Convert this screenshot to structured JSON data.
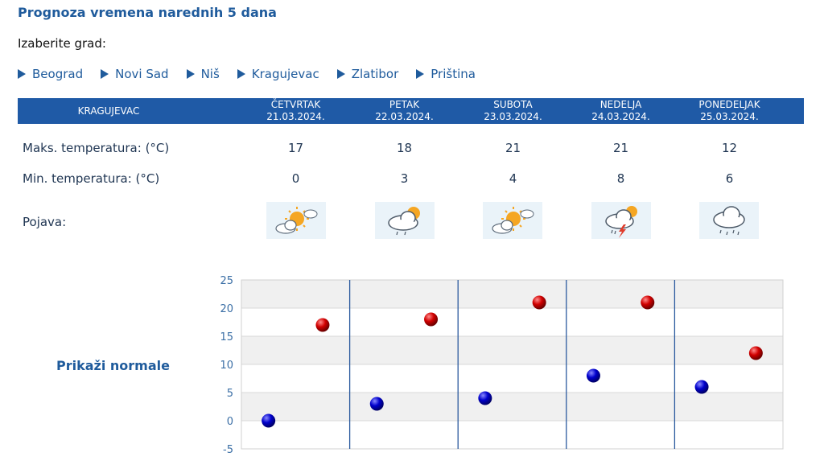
{
  "title": "Prognoza vremena narednih 5 dana",
  "choose_label": "Izaberite grad:",
  "cities": [
    "Beograd",
    "Novi Sad",
    "Niš",
    "Kragujevac",
    "Zlatibor",
    "Priština"
  ],
  "city_name": "KRAGUJEVAC",
  "days": [
    {
      "name": "ČETVRTAK",
      "date": "21.03.2024.",
      "max": "17",
      "min": "0",
      "icon": "sun-cloud-icon"
    },
    {
      "name": "PETAK",
      "date": "22.03.2024.",
      "max": "18",
      "min": "3",
      "icon": "sun-rain-cloud-icon"
    },
    {
      "name": "SUBOTA",
      "date": "23.03.2024.",
      "max": "21",
      "min": "4",
      "icon": "sun-cloud-icon"
    },
    {
      "name": "NEDELJA",
      "date": "24.03.2024.",
      "max": "21",
      "min": "8",
      "icon": "thunderstorm-icon"
    },
    {
      "name": "PONEDELJAK",
      "date": "25.03.2024.",
      "max": "12",
      "min": "6",
      "icon": "rain-cloud-icon"
    }
  ],
  "row_labels": {
    "max": "Maks. temperatura: (°C)",
    "min": "Min. temperatura: (°C)",
    "phenomenon": "Pojava:"
  },
  "show_normals": "Prikaži normale",
  "colors": {
    "brand": "#1f5aa6",
    "max_marker": "#cc0000",
    "min_marker": "#0000cc"
  },
  "chart_data": {
    "type": "scatter",
    "categories": [
      "21.03.2024.",
      "22.03.2024.",
      "23.03.2024.",
      "24.03.2024.",
      "25.03.2024."
    ],
    "series": [
      {
        "values": [
          17,
          18,
          21,
          21,
          12
        ]
      },
      {
        "values": [
          0,
          3,
          4,
          8,
          6
        ]
      }
    ],
    "ylim": [
      -5,
      25
    ],
    "yticks": [
      25,
      20,
      15,
      10,
      5,
      0,
      -5
    ],
    "grid": true
  }
}
